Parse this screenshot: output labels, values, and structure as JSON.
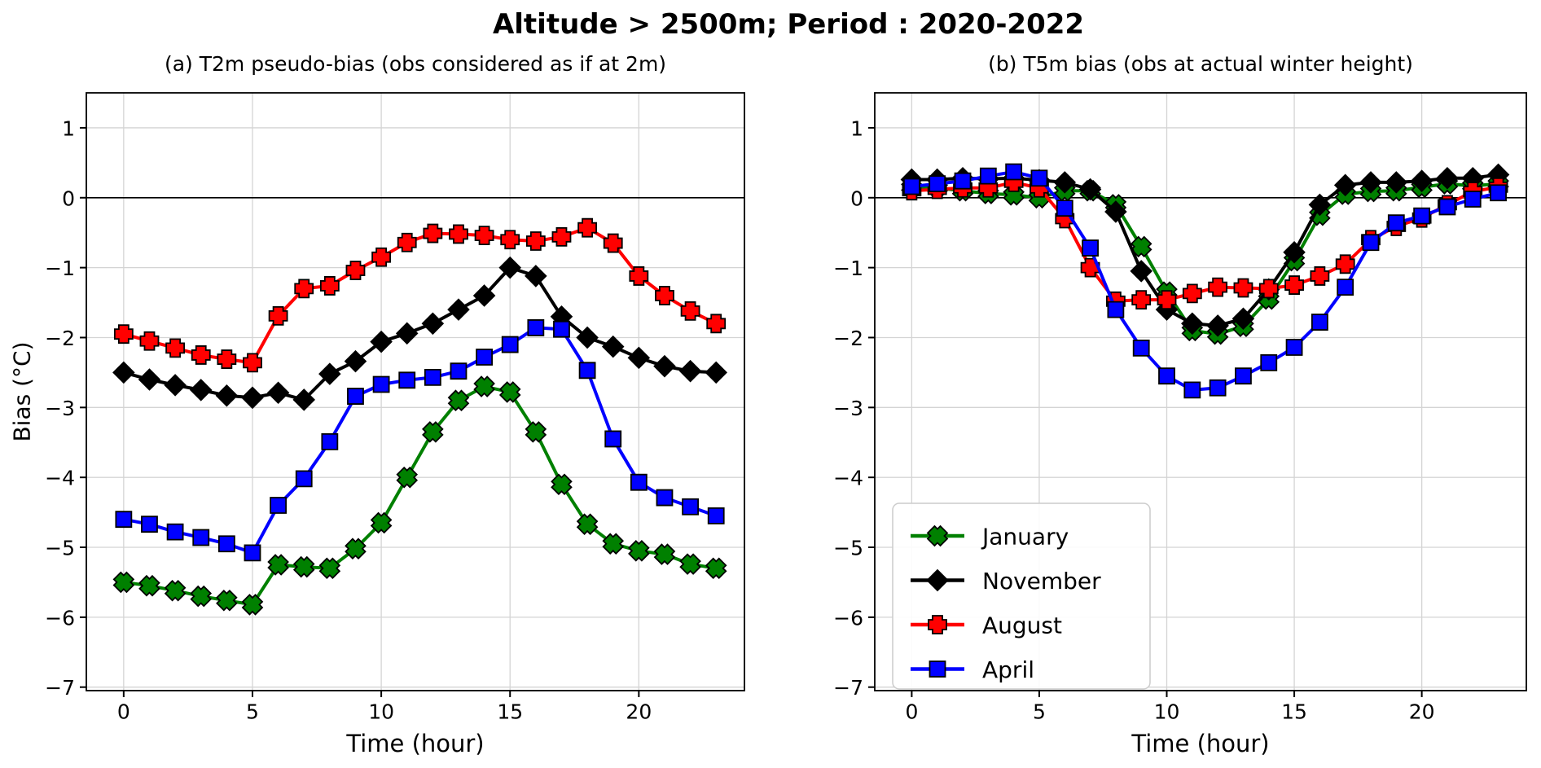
{
  "figure": {
    "suptitle": "Altitude > 2500m; Period : 2020-2022",
    "ylabel": "Bias (°C)",
    "background": "#ffffff",
    "grid_color": "#d4d4d4",
    "zero_line_color": "#000000",
    "spine_color": "#000000",
    "marker_edge_color": "#000000"
  },
  "legend": {
    "position": "lower-left-of-panel-b",
    "items": [
      {
        "label": "January",
        "color": "#008000",
        "marker": "xmark"
      },
      {
        "label": "November",
        "color": "#000000",
        "marker": "diamond"
      },
      {
        "label": "August",
        "color": "#ff0000",
        "marker": "plus"
      },
      {
        "label": "April",
        "color": "#0000ff",
        "marker": "square"
      }
    ]
  },
  "chart_data": [
    {
      "type": "line",
      "title": "(a) T2m pseudo-bias (obs considered as if at 2m)",
      "xlabel": "Time (hour)",
      "ylabel": "Bias (°C)",
      "x": [
        0,
        1,
        2,
        3,
        4,
        5,
        6,
        7,
        8,
        9,
        10,
        11,
        12,
        13,
        14,
        15,
        16,
        17,
        18,
        19,
        20,
        21,
        22,
        23
      ],
      "xlim": [
        -1.45,
        24.1
      ],
      "ylim": [
        -7.05,
        1.5
      ],
      "xticks": [
        0,
        5,
        10,
        15,
        20
      ],
      "yticks": [
        1,
        0,
        -1,
        -2,
        -3,
        -4,
        -5,
        -6,
        -7
      ],
      "grid": true,
      "zero_line": true,
      "legend": false,
      "series": [
        {
          "name": "January",
          "color": "#008000",
          "marker": "xmark",
          "values": [
            -5.5,
            -5.55,
            -5.62,
            -5.7,
            -5.76,
            -5.82,
            -5.25,
            -5.28,
            -5.3,
            -5.02,
            -4.65,
            -4.0,
            -3.35,
            -2.9,
            -2.7,
            -2.78,
            -3.35,
            -4.1,
            -4.67,
            -4.95,
            -5.05,
            -5.1,
            -5.24,
            -5.3
          ]
        },
        {
          "name": "November",
          "color": "#000000",
          "marker": "diamond",
          "values": [
            -2.5,
            -2.6,
            -2.68,
            -2.75,
            -2.83,
            -2.86,
            -2.79,
            -2.89,
            -2.52,
            -2.34,
            -2.06,
            -1.94,
            -1.8,
            -1.6,
            -1.4,
            -1.0,
            -1.12,
            -1.7,
            -2.0,
            -2.13,
            -2.29,
            -2.41,
            -2.48,
            -2.5
          ]
        },
        {
          "name": "August",
          "color": "#ff0000",
          "marker": "plus",
          "values": [
            -1.95,
            -2.05,
            -2.15,
            -2.25,
            -2.31,
            -2.36,
            -1.69,
            -1.3,
            -1.26,
            -1.04,
            -0.85,
            -0.64,
            -0.51,
            -0.52,
            -0.54,
            -0.6,
            -0.62,
            -0.56,
            -0.43,
            -0.65,
            -1.12,
            -1.4,
            -1.62,
            -1.8
          ]
        },
        {
          "name": "April",
          "color": "#0000ff",
          "marker": "square",
          "values": [
            -4.6,
            -4.67,
            -4.78,
            -4.86,
            -4.95,
            -5.08,
            -4.4,
            -4.02,
            -3.49,
            -2.84,
            -2.67,
            -2.61,
            -2.57,
            -2.48,
            -2.28,
            -2.1,
            -1.86,
            -1.88,
            -2.47,
            -3.45,
            -4.07,
            -4.29,
            -4.42,
            -4.55
          ]
        }
      ]
    },
    {
      "type": "line",
      "title": "(b) T5m bias (obs at actual winter height)",
      "xlabel": "Time (hour)",
      "ylabel": "Bias (°C)",
      "x": [
        0,
        1,
        2,
        3,
        4,
        5,
        6,
        7,
        8,
        9,
        10,
        11,
        12,
        13,
        14,
        15,
        16,
        17,
        18,
        19,
        20,
        21,
        22,
        23
      ],
      "xlim": [
        -1.45,
        24.1
      ],
      "ylim": [
        -7.05,
        1.5
      ],
      "xticks": [
        0,
        5,
        10,
        15,
        20
      ],
      "yticks": [
        1,
        0,
        -1,
        -2,
        -3,
        -4,
        -5,
        -6,
        -7
      ],
      "grid": true,
      "zero_line": true,
      "legend": true,
      "series": [
        {
          "name": "January",
          "color": "#008000",
          "marker": "xmark",
          "values": [
            0.15,
            0.14,
            0.1,
            0.06,
            0.04,
            0.0,
            0.1,
            0.1,
            -0.1,
            -0.7,
            -1.35,
            -1.9,
            -1.95,
            -1.84,
            -1.45,
            -0.9,
            -0.25,
            0.05,
            0.09,
            0.1,
            0.15,
            0.2,
            0.17,
            0.2
          ]
        },
        {
          "name": "November",
          "color": "#000000",
          "marker": "diamond",
          "values": [
            0.26,
            0.26,
            0.28,
            0.27,
            0.28,
            0.25,
            0.22,
            0.12,
            -0.2,
            -1.05,
            -1.6,
            -1.8,
            -1.83,
            -1.73,
            -1.31,
            -0.78,
            -0.1,
            0.18,
            0.22,
            0.22,
            0.24,
            0.28,
            0.28,
            0.33
          ]
        },
        {
          "name": "August",
          "color": "#ff0000",
          "marker": "plus",
          "values": [
            0.1,
            0.12,
            0.14,
            0.14,
            0.22,
            0.14,
            -0.3,
            -1.0,
            -1.48,
            -1.46,
            -1.46,
            -1.37,
            -1.28,
            -1.29,
            -1.3,
            -1.25,
            -1.12,
            -0.95,
            -0.6,
            -0.41,
            -0.29,
            -0.1,
            0.09,
            0.15
          ]
        },
        {
          "name": "April",
          "color": "#0000ff",
          "marker": "square",
          "values": [
            0.16,
            0.2,
            0.24,
            0.31,
            0.37,
            0.28,
            -0.15,
            -0.72,
            -1.6,
            -2.15,
            -2.55,
            -2.75,
            -2.72,
            -2.55,
            -2.36,
            -2.14,
            -1.78,
            -1.28,
            -0.64,
            -0.36,
            -0.26,
            -0.13,
            -0.02,
            0.07
          ]
        }
      ]
    }
  ]
}
